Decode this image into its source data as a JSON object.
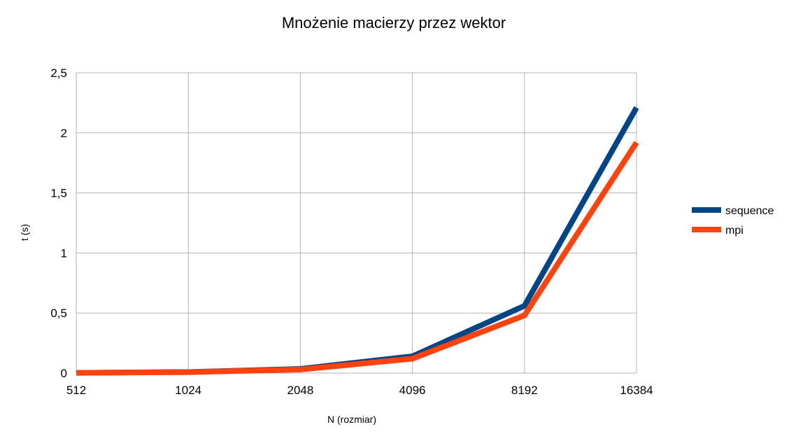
{
  "chart_data": {
    "type": "line",
    "title": "Mnożenie macierzy przez wektor",
    "xlabel": "N (rozmiar)",
    "ylabel": "t (s)",
    "categories": [
      "512",
      "1024",
      "2048",
      "4096",
      "8192",
      "16384"
    ],
    "y_ticks": [
      "0",
      "0,5",
      "1",
      "1,5",
      "2",
      "2,5"
    ],
    "ylim": [
      0,
      2.5
    ],
    "grid": true,
    "legend": "right",
    "series": [
      {
        "name": "sequence",
        "color": "#004586",
        "values": [
          0.002,
          0.009,
          0.035,
          0.14,
          0.56,
          2.21
        ]
      },
      {
        "name": "mpi",
        "color": "#ff420e",
        "values": [
          0.002,
          0.008,
          0.03,
          0.12,
          0.48,
          1.92
        ]
      }
    ]
  }
}
